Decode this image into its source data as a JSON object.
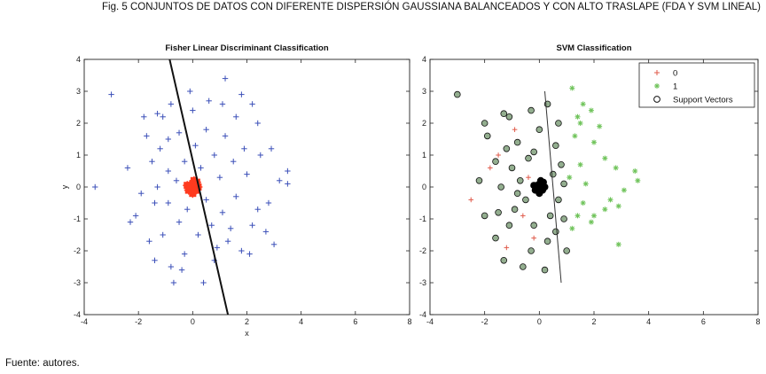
{
  "figure": {
    "caption": "Fig. 5 CONJUNTOS DE DATOS CON DIFERENTE DISPERSIÓN GAUSSIANA BALANCEADOS Y CON ALTO TRASLAPE (FDA Y SVM LINEAL)",
    "source": "Fuente: autores."
  },
  "colors": {
    "fisher_points": "#3b4fb8",
    "fisher_center": "#ff3b1f",
    "fisher_line": "#111111",
    "svm_class0": "#e05a4a",
    "svm_class1": "#6fc35a",
    "svm_sv_fill": "#3a6b33",
    "svm_center": "#000000"
  },
  "chart_data": [
    {
      "type": "scatter",
      "title": "Fisher Linear Discriminant Classification",
      "xlabel": "x",
      "ylabel": "y",
      "xlim": [
        -4,
        8
      ],
      "ylim": [
        -4,
        4
      ],
      "xticks": [
        -4,
        -2,
        0,
        2,
        4,
        6,
        8
      ],
      "yticks": [
        4,
        3,
        2,
        1,
        0,
        -1,
        -2,
        -3,
        -4
      ],
      "marker": "plus",
      "grid": false,
      "series": [
        {
          "points": [
            [
              -3.0,
              2.9
            ],
            [
              -1.3,
              2.3
            ],
            [
              -1.8,
              2.2
            ],
            [
              -1.1,
              2.2
            ],
            [
              -0.9,
              1.5
            ],
            [
              -2.4,
              0.6
            ],
            [
              -3.6,
              0.0
            ],
            [
              -1.9,
              -0.2
            ],
            [
              -2.1,
              -0.9
            ],
            [
              -1.6,
              -1.7
            ],
            [
              -1.4,
              -2.3
            ],
            [
              -0.8,
              -2.5
            ],
            [
              -0.3,
              -2.1
            ],
            [
              -0.7,
              -3.0
            ],
            [
              0.4,
              -3.0
            ],
            [
              0.8,
              -2.3
            ],
            [
              1.3,
              -1.7
            ],
            [
              1.8,
              -2.0
            ],
            [
              2.1,
              -2.1
            ],
            [
              2.7,
              -1.4
            ],
            [
              3.0,
              -1.8
            ],
            [
              2.4,
              -0.7
            ],
            [
              2.8,
              -0.5
            ],
            [
              3.2,
              0.2
            ],
            [
              3.5,
              0.5
            ],
            [
              3.5,
              0.1
            ],
            [
              2.9,
              1.2
            ],
            [
              2.4,
              2.0
            ],
            [
              2.2,
              2.6
            ],
            [
              1.8,
              2.9
            ],
            [
              1.2,
              3.4
            ],
            [
              0.6,
              2.7
            ],
            [
              -0.1,
              3.0
            ],
            [
              0.0,
              2.4
            ],
            [
              0.5,
              1.8
            ],
            [
              -0.5,
              1.7
            ],
            [
              -1.2,
              1.2
            ],
            [
              -1.5,
              0.8
            ],
            [
              -0.9,
              0.5
            ],
            [
              -1.3,
              0.0
            ],
            [
              -0.9,
              -0.5
            ],
            [
              -0.5,
              -1.1
            ],
            [
              -1.1,
              -1.5
            ],
            [
              0.2,
              -1.5
            ],
            [
              0.7,
              -1.2
            ],
            [
              1.1,
              -0.8
            ],
            [
              1.6,
              -0.3
            ],
            [
              1.0,
              0.3
            ],
            [
              1.5,
              0.8
            ],
            [
              1.9,
              1.2
            ],
            [
              1.2,
              1.6
            ],
            [
              0.8,
              1.0
            ],
            [
              0.3,
              0.6
            ],
            [
              -0.3,
              0.8
            ],
            [
              -0.6,
              0.2
            ],
            [
              0.5,
              -0.4
            ],
            [
              1.4,
              -1.3
            ],
            [
              2.0,
              0.4
            ],
            [
              -1.7,
              1.6
            ],
            [
              -0.2,
              -0.7
            ],
            [
              0.9,
              -1.9
            ],
            [
              -0.8,
              2.6
            ],
            [
              1.6,
              2.2
            ],
            [
              2.5,
              1.0
            ],
            [
              -2.3,
              -1.1
            ],
            [
              -1.4,
              -0.5
            ],
            [
              0.1,
              1.3
            ],
            [
              2.2,
              -1.2
            ],
            [
              -0.4,
              -2.6
            ],
            [
              1.1,
              2.6
            ]
          ]
        },
        {
          "name": "",
          "points": [
            [
              -0.1,
              0.05
            ],
            [
              0.05,
              -0.05
            ],
            [
              -0.05,
              0.0
            ],
            [
              0.1,
              0.1
            ],
            [
              0.0,
              0.1
            ],
            [
              -0.15,
              -0.1
            ],
            [
              0.12,
              -0.1
            ],
            [
              0.2,
              0.0
            ],
            [
              -0.2,
              0.05
            ],
            [
              0.05,
              0.2
            ],
            [
              0.0,
              -0.2
            ],
            [
              0.15,
              0.15
            ]
          ]
        }
      ],
      "boundary": [
        [
          -0.85,
          4.0
        ],
        [
          1.3,
          -4.0
        ]
      ]
    },
    {
      "type": "scatter",
      "title": "SVM Classification",
      "xlim": [
        -4,
        8
      ],
      "ylim": [
        -4,
        4
      ],
      "xticks": [
        -4,
        -2,
        0,
        2,
        4,
        6,
        8
      ],
      "yticks": [
        4,
        3,
        2,
        1,
        0,
        -1,
        -2,
        -3,
        -4
      ],
      "grid": false,
      "legend": {
        "placement": "top-right",
        "entries": [
          "0",
          "1",
          "Support Vectors"
        ]
      },
      "series": [
        {
          "name": "0",
          "marker": "plus",
          "points": [
            [
              -1.8,
              0.6
            ],
            [
              -2.5,
              -0.4
            ],
            [
              -1.2,
              -1.9
            ],
            [
              -0.9,
              1.8
            ],
            [
              -0.6,
              -0.9
            ],
            [
              -1.5,
              1.0
            ],
            [
              -0.4,
              0.3
            ],
            [
              -0.2,
              -1.6
            ]
          ]
        },
        {
          "name": "1",
          "marker": "star",
          "points": [
            [
              1.2,
              3.1
            ],
            [
              1.6,
              2.6
            ],
            [
              1.9,
              2.4
            ],
            [
              2.2,
              1.9
            ],
            [
              2.0,
              1.4
            ],
            [
              2.4,
              0.9
            ],
            [
              2.8,
              0.6
            ],
            [
              3.5,
              0.5
            ],
            [
              3.6,
              0.2
            ],
            [
              3.1,
              -0.1
            ],
            [
              2.6,
              -0.4
            ],
            [
              2.4,
              -0.7
            ],
            [
              2.9,
              -0.6
            ],
            [
              2.0,
              -0.9
            ],
            [
              2.9,
              -1.8
            ],
            [
              1.4,
              2.2
            ],
            [
              1.3,
              1.6
            ],
            [
              1.5,
              0.7
            ],
            [
              1.1,
              0.3
            ],
            [
              1.7,
              0.1
            ],
            [
              1.6,
              -0.5
            ],
            [
              1.4,
              -0.9
            ],
            [
              1.2,
              -1.3
            ],
            [
              1.9,
              -1.1
            ],
            [
              1.5,
              2.0
            ]
          ]
        },
        {
          "name": "Support Vectors",
          "marker": "circle",
          "points": [
            [
              -3.0,
              2.9
            ],
            [
              -2.0,
              2.0
            ],
            [
              -1.3,
              2.3
            ],
            [
              -1.1,
              2.2
            ],
            [
              -1.9,
              1.6
            ],
            [
              -1.2,
              1.2
            ],
            [
              -0.8,
              1.4
            ],
            [
              -1.6,
              0.8
            ],
            [
              -1.0,
              0.6
            ],
            [
              -2.2,
              0.2
            ],
            [
              -1.4,
              0.0
            ],
            [
              -0.8,
              -0.2
            ],
            [
              -2.0,
              -0.9
            ],
            [
              -1.5,
              -0.8
            ],
            [
              -0.9,
              -0.7
            ],
            [
              -1.6,
              -1.6
            ],
            [
              -1.3,
              -2.3
            ],
            [
              -0.6,
              -2.5
            ],
            [
              -0.3,
              -2.0
            ],
            [
              0.3,
              -1.7
            ],
            [
              -0.2,
              -1.2
            ],
            [
              0.0,
              1.8
            ],
            [
              0.3,
              2.6
            ],
            [
              -0.3,
              2.4
            ],
            [
              0.6,
              1.3
            ],
            [
              0.8,
              0.7
            ],
            [
              0.5,
              0.4
            ],
            [
              0.7,
              -0.4
            ],
            [
              0.9,
              -1.0
            ],
            [
              0.6,
              -1.4
            ],
            [
              1.0,
              -2.0
            ],
            [
              0.2,
              -2.6
            ],
            [
              -0.4,
              0.9
            ],
            [
              -0.5,
              -0.4
            ],
            [
              0.4,
              -0.9
            ],
            [
              -0.7,
              0.2
            ],
            [
              0.9,
              0.1
            ],
            [
              -1.1,
              -1.2
            ],
            [
              -0.2,
              1.1
            ],
            [
              0.7,
              2.0
            ]
          ]
        },
        {
          "points": [
            [
              -0.1,
              0.05
            ],
            [
              0.05,
              -0.05
            ],
            [
              -0.05,
              0.0
            ],
            [
              0.1,
              0.1
            ],
            [
              0.0,
              0.1
            ],
            [
              -0.15,
              -0.1
            ],
            [
              0.12,
              -0.1
            ],
            [
              0.2,
              0.0
            ],
            [
              -0.2,
              0.05
            ],
            [
              0.05,
              0.2
            ],
            [
              0.0,
              -0.2
            ],
            [
              0.15,
              0.15
            ]
          ]
        }
      ],
      "boundary": [
        [
          0.2,
          3.0
        ],
        [
          0.8,
          -3.0
        ]
      ]
    }
  ]
}
